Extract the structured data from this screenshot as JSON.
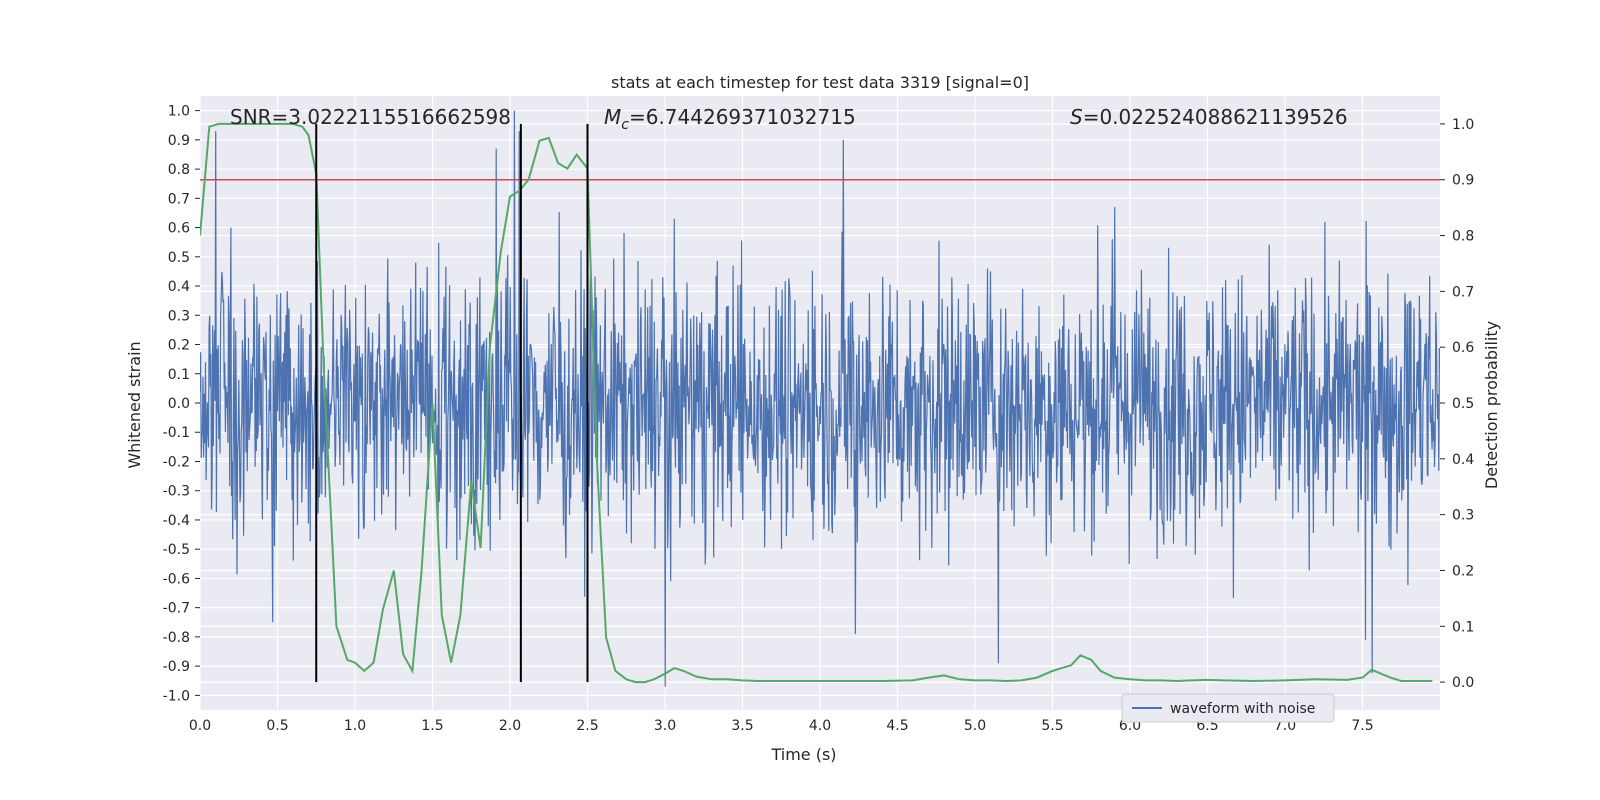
{
  "chart_data": {
    "type": "line",
    "title": "stats at each timestep for test data 3319 [signal=0]",
    "xlabel": "Time (s)",
    "ylabel": "Whitened strain",
    "y2label": "Detection probability",
    "xlim": [
      0.0,
      8.0
    ],
    "ylim": [
      -1.05,
      1.05
    ],
    "y2lim": [
      -0.05,
      1.05
    ],
    "xticks": [
      "0.0",
      "0.5",
      "1.0",
      "1.5",
      "2.0",
      "2.5",
      "3.0",
      "3.5",
      "4.0",
      "4.5",
      "5.0",
      "5.5",
      "6.0",
      "6.5",
      "7.0",
      "7.5"
    ],
    "yticks": [
      "1.0",
      "0.9",
      "0.8",
      "0.7",
      "0.6",
      "0.5",
      "0.4",
      "0.3",
      "0.2",
      "0.1",
      "0.0",
      "-0.1",
      "-0.2",
      "-0.3",
      "-0.4",
      "-0.5",
      "-0.6",
      "-0.7",
      "-0.8",
      "-0.9",
      "-1.0"
    ],
    "y2ticks": [
      "1.0",
      "0.9",
      "0.8",
      "0.7",
      "0.6",
      "0.5",
      "0.4",
      "0.3",
      "0.2",
      "0.1",
      "0.0"
    ],
    "stats": {
      "snr_label": "SNR=3.0222115516662598",
      "mc_label_prefix": "M",
      "mc_label_sub": "c",
      "mc_label_value": "=6.744269371032715",
      "s_label_prefix": "S",
      "s_label_value": "=0.022524088621139526"
    },
    "threshold": 0.9,
    "vlines": [
      0.75,
      2.07,
      2.5
    ],
    "legend": {
      "label": "waveform with noise",
      "placement": "lower-right"
    },
    "colors": {
      "background": "#eaeaf2",
      "grid": "#ffffff",
      "waveform": "#4c72b0",
      "probability": "#55a868",
      "threshold": "#c44e52",
      "vline": "#000000"
    },
    "waveform": {
      "name": "waveform with noise",
      "sample_count": 2048,
      "typical_amplitude": 0.22,
      "peaks": [
        [
          0.1,
          0.93
        ],
        [
          0.2,
          0.6
        ],
        [
          1.91,
          0.87
        ],
        [
          2.03,
          1.0
        ],
        [
          2.06,
          0.93
        ],
        [
          4.15,
          0.9
        ],
        [
          3.0,
          -0.97
        ],
        [
          4.23,
          -0.79
        ],
        [
          7.52,
          -0.81
        ],
        [
          0.47,
          -0.75
        ]
      ]
    },
    "probability": {
      "x": [
        0.0,
        0.06,
        0.12,
        0.18,
        0.25,
        0.3,
        0.38,
        0.45,
        0.5,
        0.55,
        0.6,
        0.66,
        0.7,
        0.75,
        0.8,
        0.88,
        0.95,
        1.0,
        1.06,
        1.12,
        1.18,
        1.25,
        1.31,
        1.37,
        1.43,
        1.5,
        1.56,
        1.62,
        1.68,
        1.75,
        1.81,
        1.87,
        1.94,
        2.0,
        2.06,
        2.12,
        2.19,
        2.25,
        2.31,
        2.37,
        2.43,
        2.5,
        2.56,
        2.62,
        2.68,
        2.75,
        2.81,
        2.87,
        2.93,
        3.0,
        3.06,
        3.12,
        3.2,
        3.3,
        3.4,
        3.5,
        3.6,
        3.8,
        4.0,
        4.2,
        4.4,
        4.6,
        4.7,
        4.8,
        4.9,
        5.0,
        5.1,
        5.2,
        5.3,
        5.4,
        5.5,
        5.56,
        5.62,
        5.68,
        5.75,
        5.81,
        5.9,
        6.0,
        6.1,
        6.2,
        6.3,
        6.4,
        6.5,
        6.6,
        6.8,
        7.0,
        7.2,
        7.4,
        7.5,
        7.56,
        7.62,
        7.68,
        7.75,
        7.85,
        7.95
      ],
      "y": [
        0.8,
        0.995,
        1.0,
        1.0,
        1.0,
        1.0,
        1.0,
        1.0,
        1.0,
        1.0,
        1.0,
        0.995,
        0.98,
        0.91,
        0.55,
        0.1,
        0.04,
        0.035,
        0.02,
        0.035,
        0.13,
        0.2,
        0.05,
        0.02,
        0.2,
        0.5,
        0.12,
        0.035,
        0.12,
        0.36,
        0.24,
        0.6,
        0.77,
        0.87,
        0.88,
        0.9,
        0.97,
        0.975,
        0.93,
        0.92,
        0.945,
        0.92,
        0.4,
        0.08,
        0.02,
        0.005,
        0.0,
        0.0,
        0.005,
        0.015,
        0.025,
        0.02,
        0.01,
        0.005,
        0.005,
        0.003,
        0.002,
        0.002,
        0.002,
        0.002,
        0.002,
        0.003,
        0.008,
        0.012,
        0.005,
        0.003,
        0.003,
        0.002,
        0.003,
        0.008,
        0.02,
        0.025,
        0.03,
        0.048,
        0.04,
        0.02,
        0.008,
        0.005,
        0.003,
        0.003,
        0.002,
        0.003,
        0.004,
        0.003,
        0.002,
        0.003,
        0.005,
        0.004,
        0.008,
        0.022,
        0.015,
        0.008,
        0.002,
        0.002,
        0.002
      ]
    }
  }
}
